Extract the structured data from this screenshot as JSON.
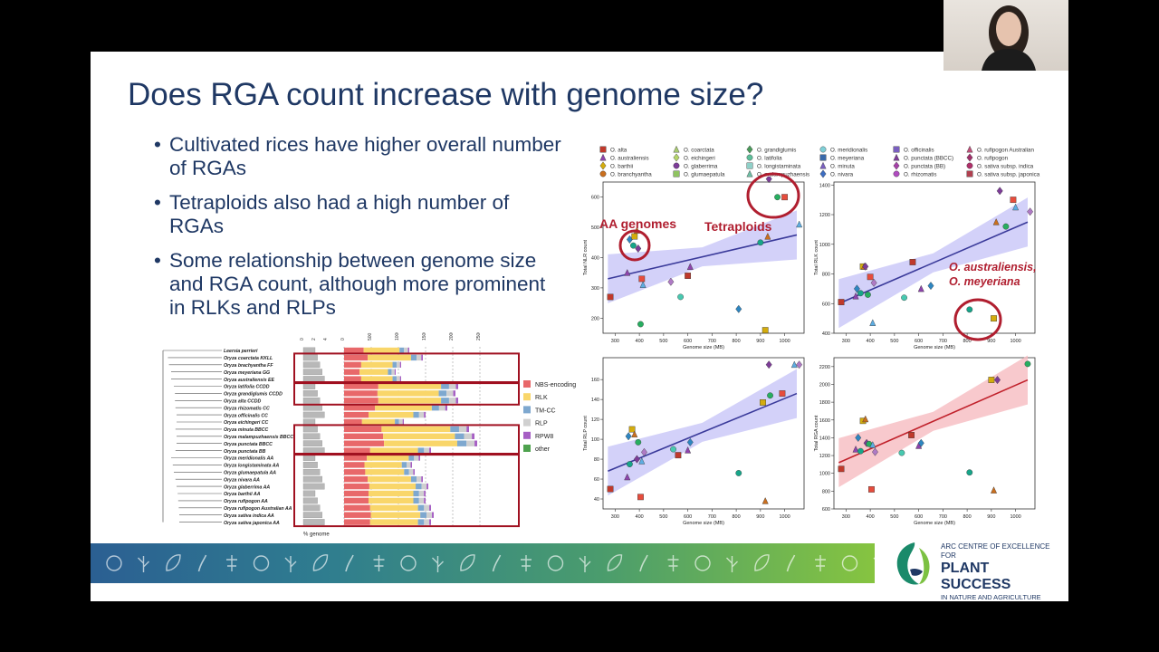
{
  "slide": {
    "title": "Does RGA count increase with genome size?",
    "bullets": [
      "Cultivated rices have higher overall number of RGAs",
      "Tetraploids also had a high number of RGAs",
      "Some relationship between genome size and RGA count, although more prominent in RLKs and RLPs"
    ]
  },
  "tree": {
    "species": [
      "Leersia perrieri",
      "Oryza coarctata KKLL",
      "Oryza brachyantha FF",
      "Oryza meyeriana GG",
      "Oryza australiensis EE",
      "Oryza latifolia CCDD",
      "Oryza grandiglumis CCDD",
      "Oryza alta CCDD",
      "Oryza rhizomatis CC",
      "Oryza officinalis CC",
      "Oryza eichingeri CC",
      "Oryza minuta BBCC",
      "Oryza malampuzhaensis BBCC",
      "Oryza punctata BBCC",
      "Oryza punctata BB",
      "Oryza meridionalis AA",
      "Oryza longistaminata AA",
      "Oryza glumaepatula AA",
      "Oryza nivara AA",
      "Oryza glaberrima AA",
      "Oryza barthii AA",
      "Oryza rufipogon AA",
      "Oryza rufipogon Australian AA",
      "Oryza sativa indica AA",
      "Oryza sativa japonica AA"
    ],
    "genome_axis_ticks": [
      "0",
      "2",
      "4"
    ],
    "genome_axis_label": "% genome",
    "count_axis_ticks": [
      "0",
      "500",
      "1000",
      "1500",
      "2000",
      "2500"
    ],
    "legend": [
      {
        "label": "NBS-encoding",
        "color": "#e8686a"
      },
      {
        "label": "RLK",
        "color": "#f9d66a"
      },
      {
        "label": "TM-CC",
        "color": "#7ea8cf"
      },
      {
        "label": "RLP",
        "color": "#d0d0d0"
      },
      {
        "label": "RPW8",
        "color": "#a65fc4"
      },
      {
        "label": "other",
        "color": "#4ea24e"
      }
    ]
  },
  "scatter_legend": [
    "O. alta",
    "O. australiensis",
    "O. barthii",
    "O. branchyantha",
    "O. coarctata",
    "O. eichingeri",
    "O. glaberrima",
    "O. glumaepatula",
    "O. grandiglumis",
    "O. latifolia",
    "O. longistaminata",
    "O. malampuzhaensis",
    "O. meridionalis",
    "O. meyeriana",
    "O. minuta",
    "O. nivara",
    "O. officinalis",
    "O. punctata (BBCC)",
    "O. punctata (BB)",
    "O. rhizomatis",
    "O. rufipogon Australian",
    "O. rufipogon",
    "O. sativa subsp. indica",
    "O. sativa subsp. japonica"
  ],
  "annotations": {
    "aa_genomes": "AA genomes",
    "tetraploids": "Tetraploids",
    "outlier_line1": "O. australiensis,",
    "outlier_line2": "O. meyeriana",
    "annotation_color": "#b01e2f"
  },
  "chart_data": [
    {
      "type": "scatter",
      "xlabel": "Genome size (MB)",
      "ylabel": "Total NLR count",
      "xlim": [
        250,
        1080
      ],
      "ylim": [
        150,
        650
      ],
      "xticks": [
        "300",
        "400",
        "500",
        "600",
        "700",
        "800",
        "900",
        "1000"
      ],
      "yticks": [
        "200",
        "300",
        "400",
        "500",
        "600"
      ],
      "series_color": "#3a3a9a",
      "band_color": "#c8c6f7",
      "points": [
        [
          280,
          270
        ],
        [
          350,
          350
        ],
        [
          360,
          460
        ],
        [
          375,
          440
        ],
        [
          380,
          470
        ],
        [
          390,
          490
        ],
        [
          395,
          430
        ],
        [
          405,
          180
        ],
        [
          410,
          330
        ],
        [
          415,
          310
        ],
        [
          530,
          320
        ],
        [
          570,
          270
        ],
        [
          600,
          340
        ],
        [
          610,
          370
        ],
        [
          810,
          230
        ],
        [
          900,
          450
        ],
        [
          920,
          160
        ],
        [
          930,
          470
        ],
        [
          935,
          660
        ],
        [
          970,
          600
        ],
        [
          1000,
          600
        ],
        [
          1060,
          510
        ]
      ],
      "fit": [
        [
          270,
          330
        ],
        [
          1050,
          475
        ]
      ]
    },
    {
      "type": "scatter",
      "xlabel": "Genome size (MB)",
      "ylabel": "Total RLK count",
      "xlim": [
        250,
        1080
      ],
      "ylim": [
        400,
        1420
      ],
      "xticks": [
        "300",
        "400",
        "500",
        "600",
        "700",
        "800",
        "900",
        "1000"
      ],
      "yticks": [
        "400",
        "600",
        "800",
        "1000",
        "1200",
        "1400"
      ],
      "series_color": "#3a3a9a",
      "band_color": "#c8c6f7",
      "points": [
        [
          280,
          610
        ],
        [
          340,
          650
        ],
        [
          345,
          700
        ],
        [
          360,
          670
        ],
        [
          370,
          850
        ],
        [
          375,
          850
        ],
        [
          380,
          850
        ],
        [
          390,
          660
        ],
        [
          400,
          780
        ],
        [
          410,
          470
        ],
        [
          415,
          740
        ],
        [
          540,
          640
        ],
        [
          575,
          880
        ],
        [
          610,
          700
        ],
        [
          650,
          720
        ],
        [
          810,
          560
        ],
        [
          910,
          500
        ],
        [
          920,
          1150
        ],
        [
          935,
          1360
        ],
        [
          960,
          1120
        ],
        [
          990,
          1300
        ],
        [
          1000,
          1250
        ],
        [
          1060,
          1220
        ]
      ],
      "fit": [
        [
          270,
          600
        ],
        [
          1050,
          1150
        ]
      ]
    },
    {
      "type": "scatter",
      "xlabel": "Genome size (MB)",
      "ylabel": "Total RLP count",
      "xlim": [
        250,
        1080
      ],
      "ylim": [
        30,
        182
      ],
      "xticks": [
        "300",
        "400",
        "500",
        "600",
        "700",
        "800",
        "900",
        "1000"
      ],
      "yticks": [
        "40",
        "60",
        "80",
        "100",
        "120",
        "140",
        "160"
      ],
      "series_color": "#3a3a9a",
      "band_color": "#c8c6f7",
      "points": [
        [
          280,
          50
        ],
        [
          350,
          62
        ],
        [
          355,
          103
        ],
        [
          360,
          75
        ],
        [
          370,
          110
        ],
        [
          380,
          105
        ],
        [
          390,
          80
        ],
        [
          395,
          97
        ],
        [
          405,
          42
        ],
        [
          410,
          78
        ],
        [
          420,
          87
        ],
        [
          540,
          90
        ],
        [
          560,
          84
        ],
        [
          600,
          89
        ],
        [
          610,
          97
        ],
        [
          810,
          66
        ],
        [
          910,
          137
        ],
        [
          920,
          38
        ],
        [
          935,
          175
        ],
        [
          940,
          144
        ],
        [
          990,
          146
        ],
        [
          1040,
          175
        ],
        [
          1060,
          175
        ]
      ],
      "fit": [
        [
          270,
          68
        ],
        [
          1050,
          146
        ]
      ]
    },
    {
      "type": "scatter",
      "xlabel": "Genome size (MB)",
      "ylabel": "Total RGA count",
      "xlim": [
        250,
        1080
      ],
      "ylim": [
        600,
        2300
      ],
      "xticks": [
        "300",
        "400",
        "500",
        "600",
        "700",
        "800",
        "900",
        "1000"
      ],
      "yticks": [
        "600",
        "800",
        "1000",
        "1200",
        "1400",
        "1600",
        "1800",
        "2000",
        "2200"
      ],
      "series_color": "#c0202a",
      "band_color": "#f6bcc0",
      "points": [
        [
          280,
          1050
        ],
        [
          340,
          1270
        ],
        [
          350,
          1400
        ],
        [
          360,
          1250
        ],
        [
          370,
          1590
        ],
        [
          380,
          1610
        ],
        [
          385,
          1340
        ],
        [
          395,
          1330
        ],
        [
          405,
          820
        ],
        [
          410,
          1320
        ],
        [
          420,
          1240
        ],
        [
          530,
          1230
        ],
        [
          570,
          1430
        ],
        [
          600,
          1310
        ],
        [
          610,
          1340
        ],
        [
          810,
          1010
        ],
        [
          900,
          2050
        ],
        [
          910,
          810
        ],
        [
          925,
          2050
        ],
        [
          1050,
          2230
        ]
      ],
      "fit": [
        [
          270,
          1120
        ],
        [
          1050,
          2050
        ]
      ]
    }
  ],
  "footer_logo": {
    "line1": "ARC CENTRE OF EXCELLENCE FOR",
    "line2": "PLANT SUCCESS",
    "line3": "IN NATURE AND AGRICULTURE"
  }
}
